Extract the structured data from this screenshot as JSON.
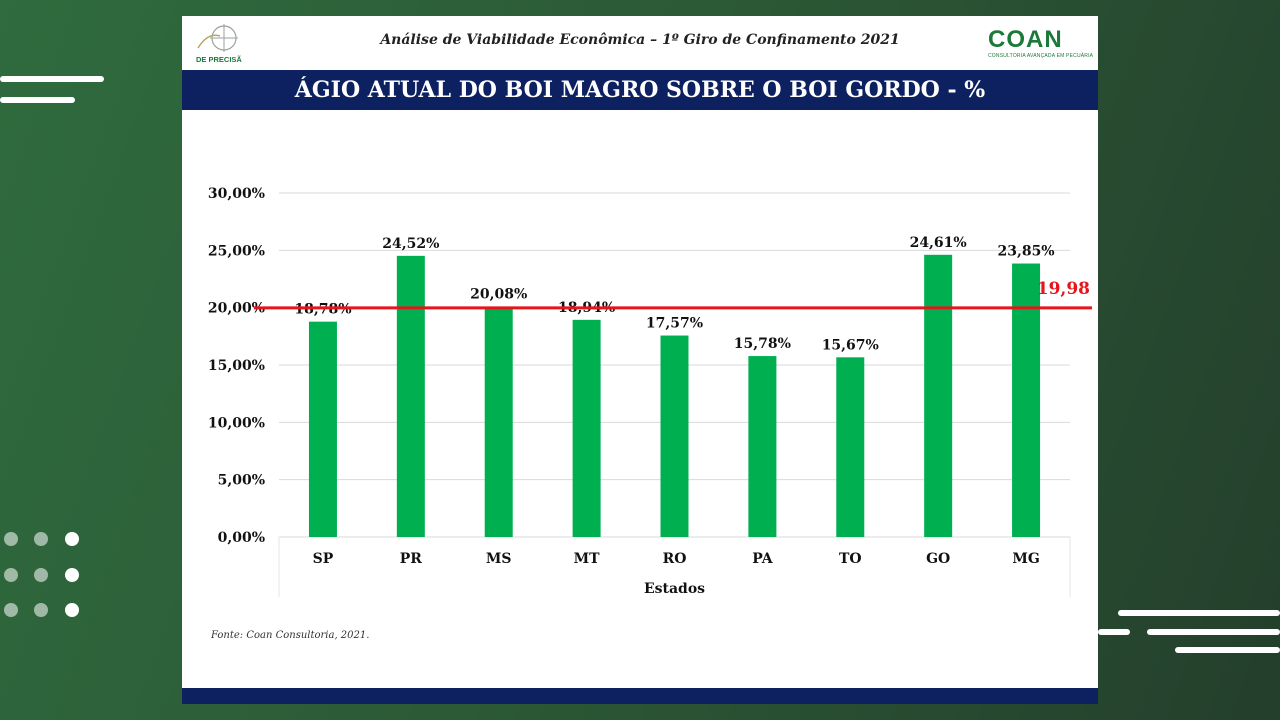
{
  "header": {
    "title": "Análise de Viabilidade Econômica – 1º Giro de Confinamento 2021",
    "logo_left_text": "DE PRECISÃO",
    "logo_right_text": "COAN",
    "logo_right_subtitle": "CONSULTORIA AVANÇADA EM PECUÁRIA"
  },
  "title_bar": {
    "text": "ÁGIO ATUAL DO BOI MAGRO SOBRE O BOI GORDO - %"
  },
  "source": "Fonte: Coan Consultoria, 2021.",
  "colors": {
    "bar": "#00b050",
    "reference_line": "#e8141c",
    "title_bar": "#0d2160",
    "logo_green": "#1b7a3a"
  },
  "chart_data": {
    "type": "bar",
    "categories": [
      "SP",
      "PR",
      "MS",
      "MT",
      "RO",
      "PA",
      "TO",
      "GO",
      "MG"
    ],
    "values": [
      18.78,
      24.52,
      20.08,
      18.94,
      17.57,
      15.78,
      15.67,
      24.61,
      23.85
    ],
    "value_labels": [
      "18,78%",
      "24,52%",
      "20,08%",
      "18,94%",
      "17,57%",
      "15,78%",
      "15,67%",
      "24,61%",
      "23,85%"
    ],
    "xlabel": "Estados",
    "ylabel": "",
    "ylim": [
      0,
      30
    ],
    "yticks": [
      0,
      5,
      10,
      15,
      20,
      25,
      30
    ],
    "ytick_labels": [
      "0,00%",
      "5,00%",
      "10,00%",
      "15,00%",
      "20,00%",
      "25,00%",
      "30,00%"
    ],
    "grid": true,
    "legend": "none",
    "reference_line": {
      "value": 19.98,
      "label": "19,98"
    }
  }
}
